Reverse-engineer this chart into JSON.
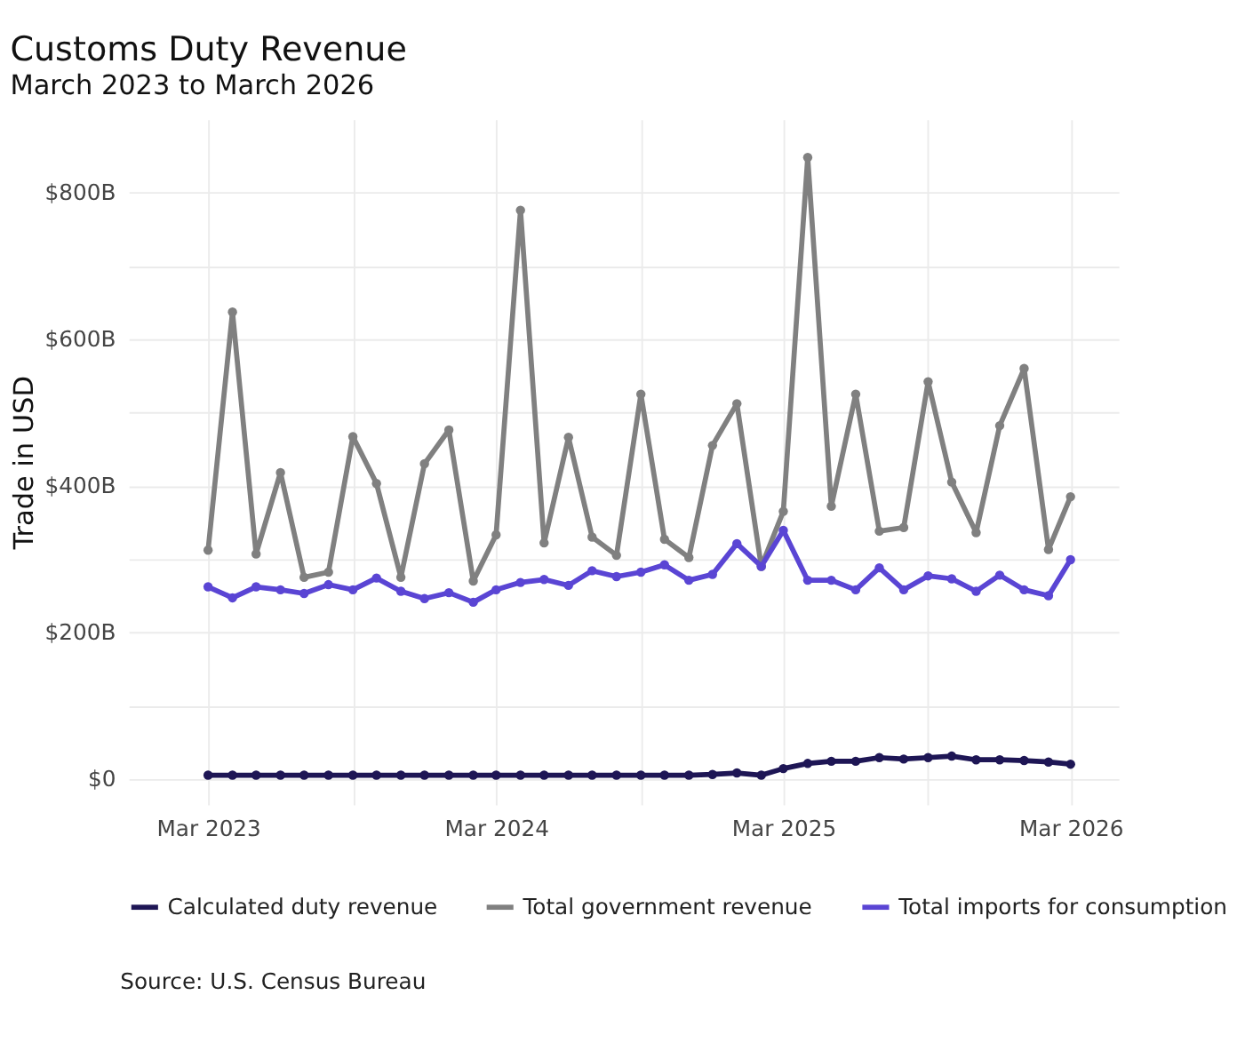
{
  "chart_data": {
    "type": "line",
    "title": "Customs Duty Revenue",
    "subtitle": "March 2023 to March 2026",
    "ylabel": "Trade in USD",
    "x": [
      "2023-03",
      "2023-04",
      "2023-05",
      "2023-06",
      "2023-07",
      "2023-08",
      "2023-09",
      "2023-10",
      "2023-11",
      "2023-12",
      "2024-01",
      "2024-02",
      "2024-03",
      "2024-04",
      "2024-05",
      "2024-06",
      "2024-07",
      "2024-08",
      "2024-09",
      "2024-10",
      "2024-11",
      "2024-12",
      "2025-01",
      "2025-02",
      "2025-03",
      "2025-04",
      "2025-05",
      "2025-06",
      "2025-07",
      "2025-08",
      "2025-09",
      "2025-10",
      "2025-11",
      "2025-12",
      "2026-01",
      "2026-02",
      "2026-03"
    ],
    "series": [
      {
        "name": "Calculated duty revenue",
        "color": "#1e1655",
        "values": [
          5,
          5,
          5,
          5,
          5,
          5,
          5,
          5,
          5,
          5,
          5,
          5,
          5,
          5,
          5,
          5,
          5,
          5,
          5,
          5,
          5,
          6,
          8,
          5,
          14,
          21,
          24,
          24,
          29,
          27,
          29,
          31,
          26,
          26,
          25,
          23,
          20
        ]
      },
      {
        "name": "Total government revenue",
        "color": "#808080",
        "values": [
          312,
          637,
          307,
          418,
          275,
          282,
          467,
          403,
          275,
          430,
          476,
          270,
          333,
          776,
          322,
          466,
          330,
          305,
          525,
          327,
          302,
          455,
          512,
          290,
          365,
          848,
          372,
          525,
          338,
          343,
          542,
          405,
          336,
          482,
          560,
          313,
          385
        ]
      },
      {
        "name": "Total imports for consumption",
        "color": "#5a45d4",
        "values": [
          262,
          247,
          262,
          258,
          253,
          265,
          258,
          274,
          256,
          246,
          254,
          241,
          258,
          268,
          272,
          264,
          284,
          276,
          282,
          292,
          271,
          279,
          321,
          290,
          339,
          271,
          271,
          258,
          288,
          258,
          277,
          273,
          256,
          278,
          258,
          250,
          299
        ]
      }
    ],
    "xlim": [
      "2022-11-20",
      "2026-05-01"
    ],
    "xticks": [
      {
        "value": "2023-03",
        "label": "Mar 2023"
      },
      {
        "value": "2023-09",
        "label": null
      },
      {
        "value": "2024-03",
        "label": "Mar 2024"
      },
      {
        "value": "2024-09",
        "label": null
      },
      {
        "value": "2025-03",
        "label": "Mar 2025"
      },
      {
        "value": "2025-09",
        "label": null
      },
      {
        "value": "2026-03",
        "label": "Mar 2026"
      }
    ],
    "ylim": [
      -35,
      900
    ],
    "yticks": [
      {
        "value": 0,
        "label": "$0"
      },
      {
        "value": 100,
        "label": null
      },
      {
        "value": 200,
        "label": "$200B"
      },
      {
        "value": 300,
        "label": null
      },
      {
        "value": 400,
        "label": "$400B"
      },
      {
        "value": 500,
        "label": null
      },
      {
        "value": 600,
        "label": "$600B"
      },
      {
        "value": 700,
        "label": null
      },
      {
        "value": 800,
        "label": "$800B"
      }
    ],
    "grid": true,
    "legend": "bottom",
    "marker": "circle",
    "line_style": "solid",
    "annotations": [
      "Source: U.S. Census Bureau"
    ]
  }
}
